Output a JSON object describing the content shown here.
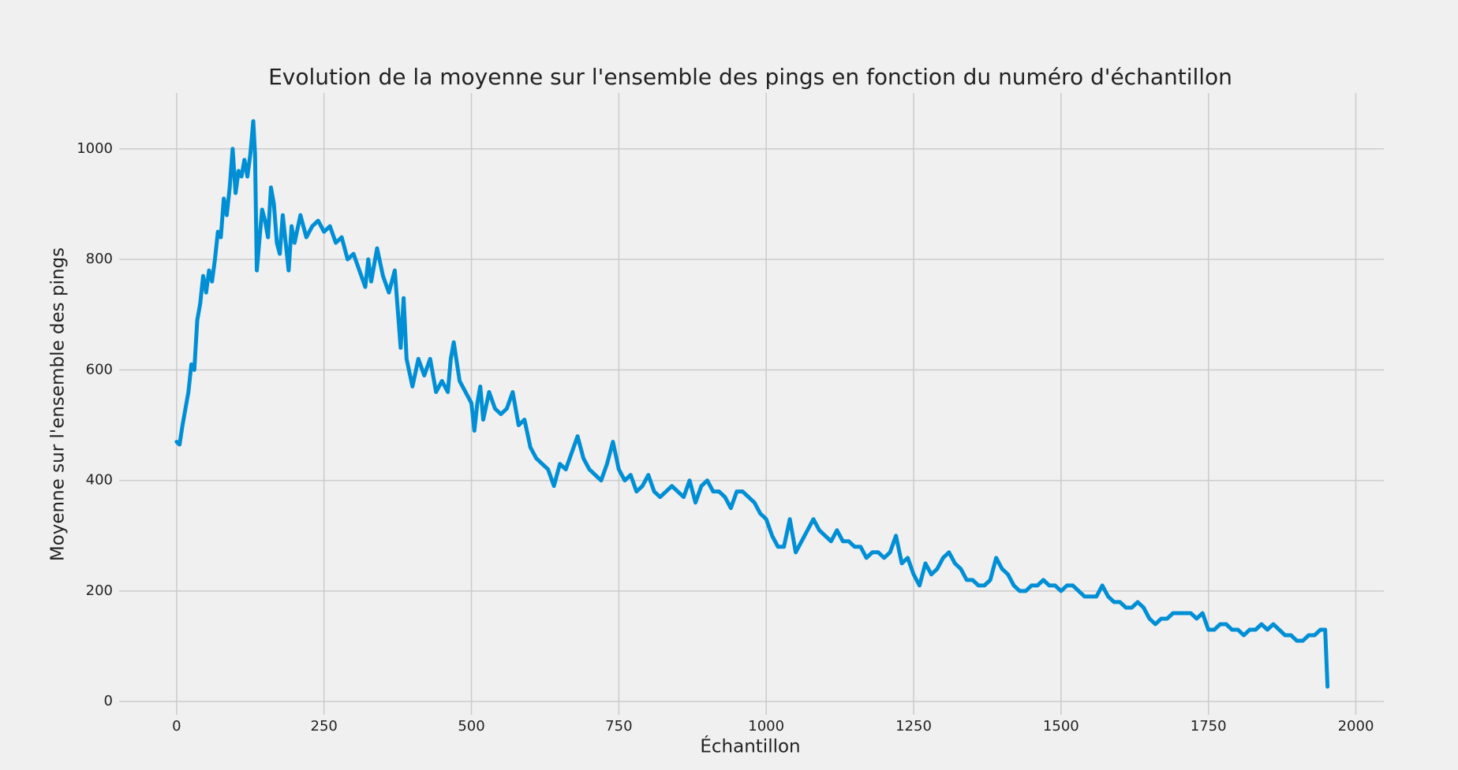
{
  "chart_data": {
    "type": "line",
    "title": "Evolution de la moyenne sur l'ensemble des pings en fonction du numéro d'échantillon",
    "x_label": "Échantillon",
    "y_label": "Moyenne sur l'ensemble des pings",
    "color": "#008fd5",
    "grid": true,
    "xlim": [
      -97.5,
      2047.5
    ],
    "ylim": [
      -24,
      1101
    ],
    "xticks": [
      0,
      250,
      500,
      750,
      1000,
      1250,
      1500,
      1750,
      2000
    ],
    "yticks": [
      0,
      200,
      400,
      600,
      800,
      1000
    ],
    "x": [
      0,
      5,
      10,
      15,
      20,
      25,
      30,
      35,
      40,
      45,
      50,
      55,
      60,
      65,
      70,
      75,
      80,
      85,
      90,
      95,
      100,
      105,
      110,
      115,
      120,
      125,
      130,
      133,
      136,
      140,
      145,
      150,
      155,
      160,
      165,
      170,
      175,
      180,
      185,
      190,
      195,
      200,
      210,
      220,
      230,
      240,
      250,
      260,
      270,
      280,
      290,
      300,
      310,
      320,
      325,
      330,
      340,
      350,
      360,
      370,
      380,
      385,
      390,
      400,
      410,
      420,
      430,
      440,
      450,
      460,
      465,
      470,
      480,
      490,
      500,
      505,
      510,
      515,
      520,
      530,
      540,
      550,
      560,
      570,
      580,
      590,
      600,
      610,
      620,
      630,
      640,
      650,
      660,
      670,
      680,
      690,
      700,
      710,
      720,
      730,
      740,
      750,
      760,
      770,
      780,
      790,
      800,
      810,
      820,
      830,
      840,
      850,
      860,
      870,
      880,
      890,
      900,
      910,
      920,
      930,
      940,
      950,
      960,
      970,
      980,
      990,
      1000,
      1010,
      1020,
      1030,
      1040,
      1050,
      1060,
      1070,
      1080,
      1090,
      1100,
      1110,
      1120,
      1130,
      1140,
      1150,
      1160,
      1170,
      1180,
      1190,
      1200,
      1210,
      1220,
      1230,
      1240,
      1250,
      1260,
      1270,
      1280,
      1290,
      1300,
      1310,
      1320,
      1330,
      1340,
      1350,
      1360,
      1370,
      1380,
      1390,
      1400,
      1410,
      1420,
      1430,
      1440,
      1450,
      1460,
      1470,
      1480,
      1490,
      1500,
      1510,
      1520,
      1530,
      1540,
      1550,
      1560,
      1570,
      1580,
      1590,
      1600,
      1610,
      1620,
      1630,
      1640,
      1650,
      1660,
      1670,
      1680,
      1690,
      1700,
      1710,
      1720,
      1730,
      1740,
      1750,
      1760,
      1770,
      1780,
      1790,
      1800,
      1810,
      1820,
      1830,
      1840,
      1850,
      1860,
      1870,
      1880,
      1890,
      1900,
      1910,
      1920,
      1930,
      1940,
      1948,
      1952
    ],
    "values": [
      470,
      465,
      500,
      530,
      560,
      610,
      600,
      690,
      720,
      770,
      740,
      780,
      760,
      800,
      850,
      840,
      910,
      880,
      930,
      1000,
      920,
      960,
      950,
      980,
      950,
      990,
      1050,
      990,
      780,
      830,
      890,
      870,
      840,
      930,
      900,
      830,
      810,
      880,
      830,
      780,
      860,
      830,
      880,
      840,
      860,
      870,
      850,
      860,
      830,
      840,
      800,
      810,
      780,
      750,
      800,
      760,
      820,
      770,
      740,
      780,
      640,
      730,
      620,
      570,
      620,
      590,
      620,
      560,
      580,
      560,
      620,
      650,
      580,
      560,
      540,
      490,
      540,
      570,
      510,
      560,
      530,
      520,
      530,
      560,
      500,
      510,
      460,
      440,
      430,
      420,
      390,
      430,
      420,
      450,
      480,
      440,
      420,
      410,
      400,
      430,
      470,
      420,
      400,
      410,
      380,
      390,
      410,
      380,
      370,
      380,
      390,
      380,
      370,
      400,
      360,
      390,
      400,
      380,
      380,
      370,
      350,
      380,
      380,
      370,
      360,
      340,
      330,
      300,
      280,
      280,
      330,
      270,
      290,
      310,
      330,
      310,
      300,
      290,
      310,
      290,
      290,
      280,
      280,
      260,
      270,
      270,
      260,
      270,
      300,
      250,
      260,
      230,
      210,
      250,
      230,
      240,
      260,
      270,
      250,
      240,
      220,
      220,
      210,
      210,
      220,
      260,
      240,
      230,
      210,
      200,
      200,
      210,
      210,
      220,
      210,
      210,
      200,
      210,
      210,
      200,
      190,
      190,
      190,
      210,
      190,
      180,
      180,
      170,
      170,
      180,
      170,
      150,
      140,
      150,
      150,
      160,
      160,
      160,
      160,
      150,
      160,
      130,
      130,
      140,
      140,
      130,
      130,
      120,
      130,
      130,
      140,
      130,
      140,
      130,
      120,
      120,
      110,
      110,
      120,
      120,
      130,
      130,
      27
    ]
  }
}
